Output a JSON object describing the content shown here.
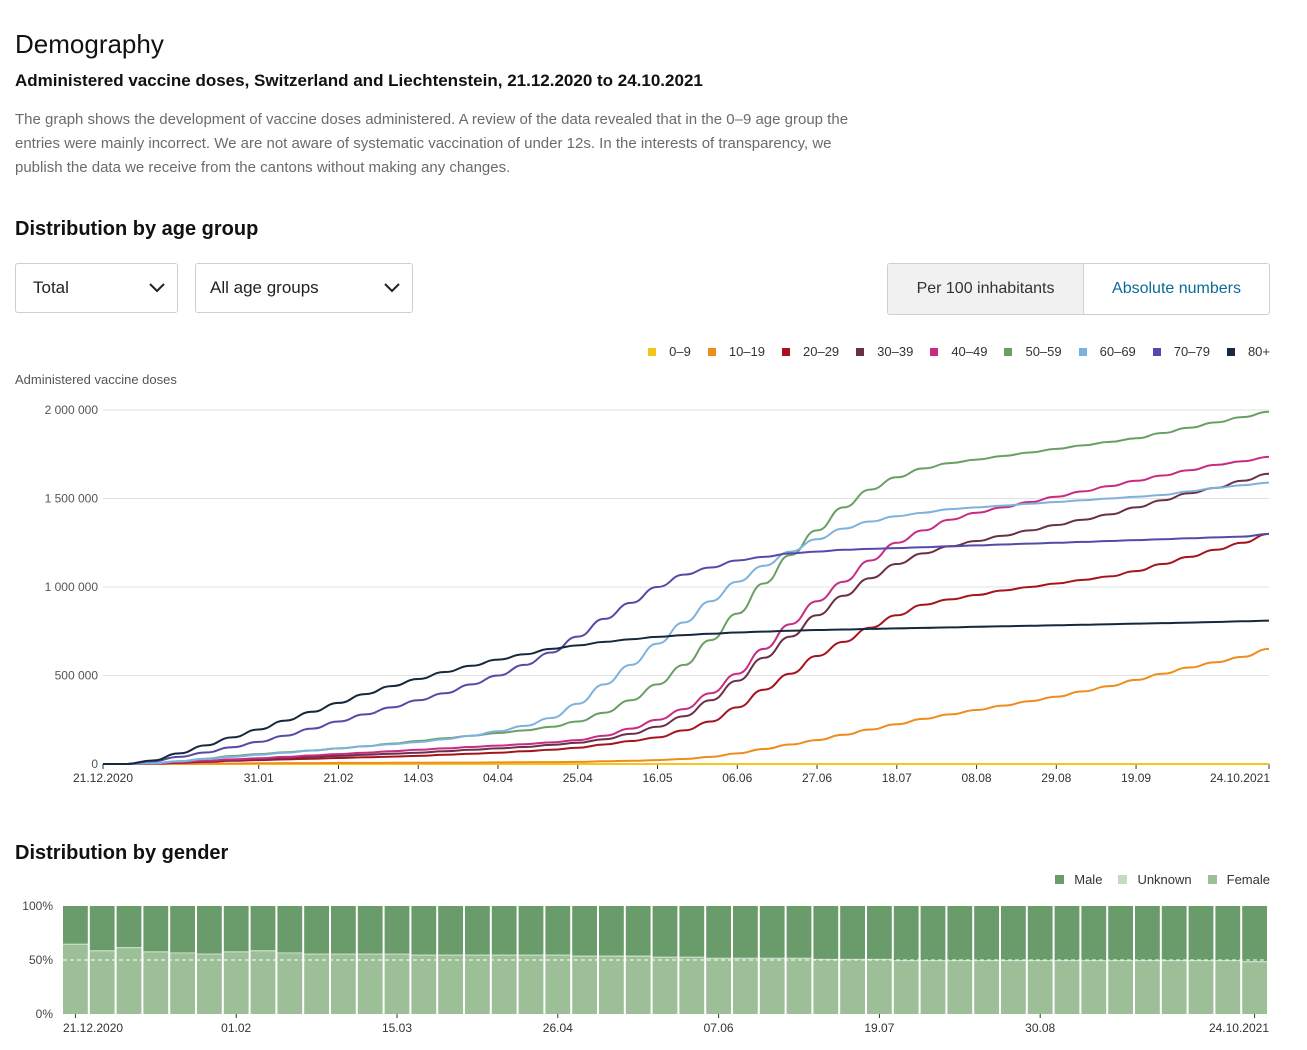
{
  "header": {
    "title": "Demography",
    "subtitle": "Administered vaccine doses, Switzerland and Liechtenstein, 21.12.2020 to 24.10.2021",
    "description": "The graph shows the development of vaccine doses administered. A review of the data revealed that in the 0–9 age group the entries were mainly incorrect. We are not aware of systematic vaccination of under 12s. In the interests of transparency, we publish the data we receive from the cantons without making any changes."
  },
  "age_section": {
    "title": "Distribution by age group",
    "dose_type_select": {
      "value": "Total",
      "icon": "chevron-down-icon"
    },
    "age_group_select": {
      "value": "All age groups",
      "icon": "chevron-down-icon"
    },
    "toggle": {
      "active": "Per 100 inhabitants",
      "inactive": "Absolute numbers"
    }
  },
  "gender_section": {
    "title": "Distribution by gender"
  },
  "chart_data": [
    {
      "type": "line",
      "ylabel": "Administered vaccine doses",
      "ylim": [
        0,
        2000000
      ],
      "yticks": [
        0,
        500000,
        1000000,
        1500000,
        2000000
      ],
      "ytick_labels": [
        "0",
        "500 000",
        "1 000 000",
        "1 500 000",
        "2 000 000"
      ],
      "xlim": [
        "2020-12-21",
        "2021-10-24"
      ],
      "xticks": [
        "2020-12-21",
        "2021-01-31",
        "2021-02-21",
        "2021-03-14",
        "2021-04-04",
        "2021-04-25",
        "2021-05-16",
        "2021-06-06",
        "2021-06-27",
        "2021-07-18",
        "2021-08-08",
        "2021-08-29",
        "2021-09-19",
        "2021-10-24"
      ],
      "xtick_labels": [
        "21.12.2020",
        "31.01",
        "21.02",
        "14.03",
        "04.04",
        "25.04",
        "16.05",
        "06.06",
        "27.06",
        "18.07",
        "08.08",
        "29.08",
        "19.09",
        "24.10.2021"
      ],
      "grid": true,
      "legend_position": "top-right",
      "x": [
        "2020-12-21",
        "2020-12-27",
        "2021-01-03",
        "2021-01-10",
        "2021-01-17",
        "2021-01-24",
        "2021-01-31",
        "2021-02-07",
        "2021-02-14",
        "2021-02-21",
        "2021-02-28",
        "2021-03-07",
        "2021-03-14",
        "2021-03-21",
        "2021-03-28",
        "2021-04-04",
        "2021-04-11",
        "2021-04-18",
        "2021-04-25",
        "2021-05-02",
        "2021-05-09",
        "2021-05-16",
        "2021-05-23",
        "2021-05-30",
        "2021-06-06",
        "2021-06-13",
        "2021-06-20",
        "2021-06-27",
        "2021-07-04",
        "2021-07-11",
        "2021-07-18",
        "2021-07-25",
        "2021-08-01",
        "2021-08-08",
        "2021-08-15",
        "2021-08-22",
        "2021-08-29",
        "2021-09-05",
        "2021-09-12",
        "2021-09-19",
        "2021-09-26",
        "2021-10-03",
        "2021-10-10",
        "2021-10-17",
        "2021-10-24"
      ],
      "series": [
        {
          "name": "0–9",
          "color": "#f5c518",
          "values": [
            0,
            0,
            0,
            0,
            0,
            0,
            0,
            0,
            0,
            0,
            0,
            0,
            0,
            0,
            0,
            0,
            0,
            0,
            0,
            0,
            0,
            0,
            0,
            0,
            0,
            0,
            0,
            0,
            0,
            0,
            0,
            0,
            0,
            0,
            0,
            0,
            0,
            0,
            0,
            0,
            0,
            0,
            0,
            0,
            0
          ]
        },
        {
          "name": "10–19",
          "color": "#f08c1c",
          "values": [
            0,
            0,
            0,
            1000,
            2000,
            3000,
            4000,
            5000,
            5000,
            6000,
            6000,
            7000,
            7000,
            8000,
            8000,
            9000,
            10000,
            11000,
            12000,
            15000,
            18000,
            22000,
            28000,
            40000,
            60000,
            85000,
            110000,
            135000,
            165000,
            195000,
            225000,
            255000,
            280000,
            305000,
            330000,
            355000,
            380000,
            410000,
            440000,
            475000,
            510000,
            545000,
            575000,
            605000,
            650000
          ]
        },
        {
          "name": "20–29",
          "color": "#a5141e",
          "values": [
            0,
            0,
            2000,
            6000,
            12000,
            18000,
            22000,
            26000,
            30000,
            34000,
            38000,
            42000,
            46000,
            52000,
            58000,
            64000,
            72000,
            80000,
            92000,
            110000,
            130000,
            150000,
            190000,
            240000,
            320000,
            420000,
            510000,
            610000,
            690000,
            770000,
            840000,
            900000,
            930000,
            955000,
            980000,
            1000000,
            1020000,
            1040000,
            1060000,
            1090000,
            1130000,
            1170000,
            1210000,
            1250000,
            1300000
          ]
        },
        {
          "name": "30–39",
          "color": "#6b2f47",
          "values": [
            0,
            0,
            2000,
            8000,
            15000,
            22000,
            28000,
            34000,
            40000,
            46000,
            52000,
            58000,
            64000,
            72000,
            80000,
            88000,
            96000,
            108000,
            120000,
            140000,
            170000,
            210000,
            270000,
            360000,
            470000,
            600000,
            720000,
            840000,
            950000,
            1050000,
            1130000,
            1190000,
            1230000,
            1260000,
            1290000,
            1320000,
            1350000,
            1380000,
            1410000,
            1450000,
            1490000,
            1530000,
            1560000,
            1600000,
            1640000
          ]
        },
        {
          "name": "40–49",
          "color": "#c72c82",
          "values": [
            0,
            0,
            3000,
            10000,
            18000,
            26000,
            32000,
            40000,
            48000,
            56000,
            64000,
            72000,
            80000,
            88000,
            96000,
            104000,
            112000,
            122000,
            135000,
            160000,
            200000,
            250000,
            310000,
            400000,
            510000,
            650000,
            790000,
            920000,
            1030000,
            1150000,
            1250000,
            1320000,
            1380000,
            1420000,
            1450000,
            1480000,
            1510000,
            1540000,
            1570000,
            1600000,
            1630000,
            1660000,
            1690000,
            1710000,
            1735000
          ]
        },
        {
          "name": "50–59",
          "color": "#6a9f64",
          "values": [
            0,
            0,
            4000,
            15000,
            30000,
            45000,
            56000,
            66000,
            76000,
            88000,
            100000,
            115000,
            130000,
            145000,
            160000,
            175000,
            190000,
            210000,
            240000,
            290000,
            360000,
            450000,
            560000,
            700000,
            850000,
            1020000,
            1180000,
            1320000,
            1450000,
            1550000,
            1620000,
            1670000,
            1700000,
            1720000,
            1740000,
            1760000,
            1780000,
            1800000,
            1820000,
            1840000,
            1870000,
            1900000,
            1930000,
            1960000,
            1990000
          ]
        },
        {
          "name": "60–69",
          "color": "#7eb2de",
          "values": [
            0,
            0,
            4000,
            15000,
            28000,
            40000,
            52000,
            64000,
            76000,
            88000,
            100000,
            112000,
            124000,
            140000,
            160000,
            185000,
            215000,
            260000,
            340000,
            450000,
            560000,
            680000,
            800000,
            920000,
            1030000,
            1120000,
            1200000,
            1270000,
            1330000,
            1370000,
            1400000,
            1420000,
            1440000,
            1450000,
            1460000,
            1470000,
            1480000,
            1490000,
            1500000,
            1510000,
            1520000,
            1540000,
            1560000,
            1575000,
            1590000
          ]
        },
        {
          "name": "70–79",
          "color": "#5649a7",
          "values": [
            0,
            0,
            15000,
            40000,
            65000,
            95000,
            125000,
            160000,
            200000,
            240000,
            280000,
            320000,
            360000,
            400000,
            450000,
            500000,
            560000,
            630000,
            720000,
            820000,
            910000,
            1000000,
            1070000,
            1110000,
            1150000,
            1170000,
            1190000,
            1200000,
            1210000,
            1215000,
            1220000,
            1225000,
            1230000,
            1235000,
            1240000,
            1245000,
            1250000,
            1255000,
            1260000,
            1265000,
            1270000,
            1275000,
            1280000,
            1285000,
            1300000
          ]
        },
        {
          "name": "80+",
          "color": "#15283d",
          "values": [
            0,
            0,
            20000,
            60000,
            105000,
            150000,
            195000,
            245000,
            295000,
            345000,
            395000,
            440000,
            480000,
            520000,
            555000,
            590000,
            620000,
            650000,
            670000,
            690000,
            705000,
            718000,
            728000,
            736000,
            743000,
            748000,
            753000,
            757000,
            760000,
            763000,
            766000,
            769000,
            772000,
            775000,
            778000,
            781000,
            784000,
            787000,
            790000,
            793000,
            796000,
            799000,
            802000,
            806000,
            810000
          ]
        }
      ]
    },
    {
      "type": "bar",
      "stacked": true,
      "ylim": [
        0,
        100
      ],
      "ytick_labels": [
        "0%",
        "50%",
        "100%"
      ],
      "xtick_labels": [
        "21.12.2020",
        "01.02",
        "15.03",
        "26.04",
        "07.06",
        "19.07",
        "30.08",
        "24.10.2021"
      ],
      "legend_position": "top-right",
      "series": [
        {
          "name": "Male",
          "color": "#6a9b6a"
        },
        {
          "name": "Unknown",
          "color": "#c2dcc0"
        },
        {
          "name": "Female",
          "color": "#9cbf98"
        }
      ],
      "female_share_percent": [
        64,
        58,
        61,
        57,
        56,
        55,
        57,
        58,
        56,
        55,
        55,
        55,
        55,
        54,
        54,
        54,
        54,
        54,
        54,
        53,
        53,
        53,
        52,
        52,
        51,
        51,
        51,
        51,
        50,
        50,
        50,
        49,
        49,
        49,
        49,
        49,
        49,
        49,
        49,
        49,
        49,
        49,
        49,
        49,
        48
      ],
      "unknown_share_percent": [
        1,
        1,
        1,
        1,
        1,
        1,
        1,
        1,
        1,
        1,
        1,
        1,
        1,
        1,
        1,
        1,
        1,
        1,
        1,
        1,
        1,
        1,
        1,
        1,
        1,
        1,
        1,
        1,
        1,
        1,
        1,
        1,
        1,
        1,
        1,
        1,
        1,
        1,
        1,
        1,
        1,
        1,
        1,
        1,
        1
      ]
    }
  ]
}
